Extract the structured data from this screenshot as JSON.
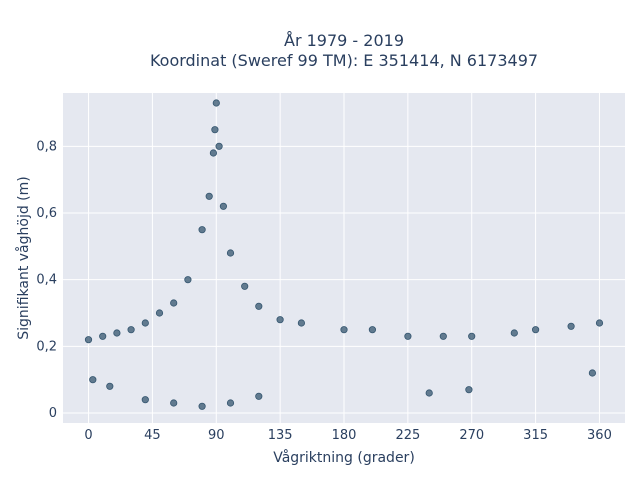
{
  "chart_data": {
    "type": "scatter",
    "title": "År 1979 - 2019",
    "subtitle": "Koordinat (Sweref 99 TM): E 351414, N 6173497",
    "xlabel": "Vågriktning (grader)",
    "ylabel": "Signifikant våghöjd (m)",
    "xlim": [
      -18,
      378
    ],
    "ylim": [
      -0.03,
      0.96
    ],
    "xticks": [
      0,
      45,
      90,
      135,
      180,
      225,
      270,
      315,
      360
    ],
    "xtick_labels": [
      "0",
      "45",
      "90",
      "135",
      "180",
      "225",
      "270",
      "315",
      "360"
    ],
    "yticks": [
      0,
      0.2,
      0.4,
      0.6,
      0.8
    ],
    "ytick_labels": [
      "0",
      "0,2",
      "0,4",
      "0,6",
      "0,8"
    ],
    "grid": true,
    "marker_color": "#34556f",
    "background_color": "#e5e8f0",
    "grid_color": "#ffffff",
    "series": [
      {
        "values_sample": [
          [
            0,
            0.22
          ],
          [
            10,
            0.23
          ],
          [
            20,
            0.24
          ],
          [
            30,
            0.25
          ],
          [
            40,
            0.27
          ],
          [
            50,
            0.3
          ],
          [
            60,
            0.33
          ],
          [
            70,
            0.4
          ],
          [
            80,
            0.55
          ],
          [
            85,
            0.65
          ],
          [
            88,
            0.78
          ],
          [
            89,
            0.85
          ],
          [
            90,
            0.93
          ],
          [
            92,
            0.8
          ],
          [
            95,
            0.62
          ],
          [
            100,
            0.48
          ],
          [
            110,
            0.38
          ],
          [
            120,
            0.32
          ],
          [
            135,
            0.28
          ],
          [
            150,
            0.27
          ],
          [
            180,
            0.25
          ],
          [
            200,
            0.25
          ],
          [
            225,
            0.23
          ],
          [
            250,
            0.23
          ],
          [
            270,
            0.23
          ],
          [
            300,
            0.24
          ],
          [
            315,
            0.25
          ],
          [
            340,
            0.26
          ],
          [
            360,
            0.27
          ],
          [
            40,
            0.04
          ],
          [
            60,
            0.03
          ],
          [
            80,
            0.02
          ],
          [
            100,
            0.03
          ],
          [
            120,
            0.05
          ],
          [
            3,
            0.1
          ],
          [
            15,
            0.08
          ],
          [
            240,
            0.06
          ],
          [
            268,
            0.07
          ],
          [
            355,
            0.12
          ]
        ]
      }
    ]
  }
}
